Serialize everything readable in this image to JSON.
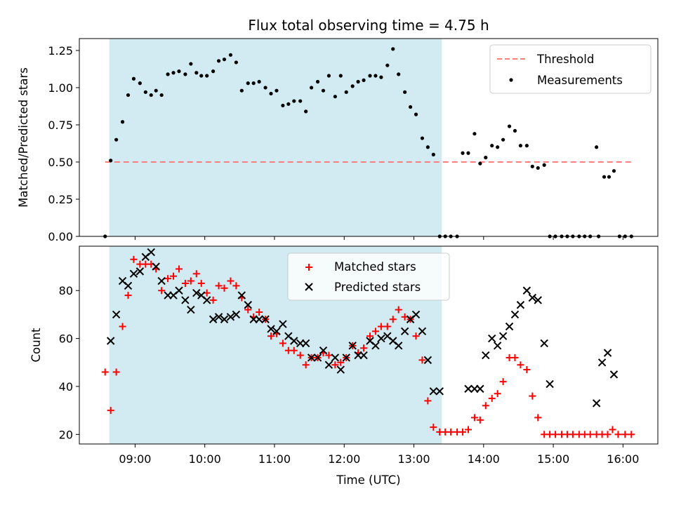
{
  "chart_data": {
    "title": "Flux total observing time = 4.75 h",
    "xlabel": "Time (UTC)",
    "xlim_hours": [
      8.2,
      16.5
    ],
    "xticks": [
      {
        "value": 9,
        "label": "09:00"
      },
      {
        "value": 10,
        "label": "10:00"
      },
      {
        "value": 11,
        "label": "11:00"
      },
      {
        "value": 12,
        "label": "12:00"
      },
      {
        "value": 13,
        "label": "13:00"
      },
      {
        "value": 14,
        "label": "14:00"
      },
      {
        "value": 15,
        "label": "15:00"
      },
      {
        "value": 16,
        "label": "16:00"
      }
    ],
    "shaded_span": {
      "x0": 8.63,
      "x1": 13.4,
      "color": "#add8e6"
    },
    "panels": [
      {
        "type": "scatter",
        "ylabel": "Matched/Predicted stars",
        "ylim": [
          0,
          1.33
        ],
        "yticks": [
          {
            "value": 0.0,
            "label": "0.00"
          },
          {
            "value": 0.25,
            "label": "0.25"
          },
          {
            "value": 0.5,
            "label": "0.50"
          },
          {
            "value": 0.75,
            "label": "0.75"
          },
          {
            "value": 1.0,
            "label": "1.00"
          },
          {
            "value": 1.25,
            "label": "1.25"
          }
        ],
        "threshold": {
          "name": "Threshold",
          "value": 0.5,
          "x0": 8.57,
          "x1": 16.13,
          "color": "#ff7f7f"
        },
        "legend": {
          "position": "upper right",
          "entries": [
            "Threshold",
            "Measurements"
          ]
        },
        "series": [
          {
            "name": "Measurements",
            "color": "#000000",
            "x": [
              8.57,
              8.65,
              8.73,
              8.82,
              8.9,
              8.98,
              9.07,
              9.15,
              9.23,
              9.3,
              9.38,
              9.47,
              9.55,
              9.63,
              9.72,
              9.8,
              9.88,
              9.95,
              10.03,
              10.12,
              10.2,
              10.28,
              10.37,
              10.45,
              10.53,
              10.62,
              10.7,
              10.78,
              10.87,
              10.95,
              11.03,
              11.12,
              11.2,
              11.28,
              11.37,
              11.45,
              11.53,
              11.62,
              11.7,
              11.78,
              11.87,
              11.95,
              12.03,
              12.12,
              12.2,
              12.28,
              12.37,
              12.45,
              12.53,
              12.62,
              12.7,
              12.78,
              12.87,
              12.95,
              13.03,
              13.12,
              13.2,
              13.28,
              13.37,
              13.45,
              13.53,
              13.62,
              13.7,
              13.78,
              13.87,
              13.95,
              14.03,
              14.12,
              14.2,
              14.28,
              14.37,
              14.45,
              14.53,
              14.62,
              14.7,
              14.78,
              14.87,
              14.95,
              15.03,
              15.12,
              15.2,
              15.28,
              15.37,
              15.45,
              15.53,
              15.62,
              15.65,
              15.73,
              15.8,
              15.87,
              15.95,
              16.03,
              16.12
            ],
            "y": [
              0.0,
              0.51,
              0.65,
              0.77,
              0.95,
              1.06,
              1.03,
              0.97,
              0.95,
              0.98,
              0.95,
              1.09,
              1.1,
              1.11,
              1.09,
              1.16,
              1.1,
              1.08,
              1.08,
              1.11,
              1.18,
              1.19,
              1.22,
              1.17,
              0.98,
              1.03,
              1.03,
              1.04,
              1.0,
              0.96,
              0.98,
              0.88,
              0.89,
              0.91,
              0.91,
              0.84,
              1.0,
              1.04,
              0.98,
              1.08,
              0.94,
              1.08,
              0.97,
              1.01,
              1.04,
              1.05,
              1.08,
              1.08,
              1.07,
              1.15,
              1.26,
              1.09,
              0.97,
              0.87,
              0.82,
              0.66,
              0.6,
              0.55,
              0.0,
              0.0,
              0.0,
              0.0,
              0.56,
              0.56,
              0.69,
              0.49,
              0.53,
              0.61,
              0.6,
              0.65,
              0.74,
              0.71,
              0.61,
              0.61,
              0.47,
              0.46,
              0.48,
              0.0,
              0.0,
              0.0,
              0.0,
              0.0,
              0.0,
              0.0,
              0.0,
              0.6,
              0.0,
              0.4,
              0.4,
              0.44,
              0.0,
              0.0,
              0.0
            ]
          }
        ]
      },
      {
        "type": "scatter",
        "ylabel": "Count",
        "ylim": [
          16,
          98.5
        ],
        "yticks": [
          {
            "value": 20,
            "label": "20"
          },
          {
            "value": 40,
            "label": "40"
          },
          {
            "value": 60,
            "label": "60"
          },
          {
            "value": 80,
            "label": "80"
          }
        ],
        "legend": {
          "position": "upper center",
          "entries": [
            "Matched stars",
            "Predicted stars"
          ]
        },
        "series": [
          {
            "name": "Matched stars",
            "marker": "+",
            "color": "#ff0000",
            "x": [
              8.57,
              8.65,
              8.73,
              8.82,
              8.9,
              8.98,
              9.07,
              9.15,
              9.23,
              9.3,
              9.38,
              9.47,
              9.55,
              9.63,
              9.72,
              9.8,
              9.88,
              9.95,
              10.03,
              10.12,
              10.2,
              10.28,
              10.37,
              10.45,
              10.53,
              10.62,
              10.7,
              10.78,
              10.87,
              10.95,
              11.03,
              11.12,
              11.2,
              11.28,
              11.37,
              11.45,
              11.53,
              11.62,
              11.7,
              11.78,
              11.87,
              11.95,
              12.03,
              12.12,
              12.2,
              12.28,
              12.37,
              12.45,
              12.53,
              12.62,
              12.7,
              12.78,
              12.87,
              12.95,
              13.03,
              13.12,
              13.2,
              13.28,
              13.37,
              13.45,
              13.53,
              13.62,
              13.7,
              13.78,
              13.87,
              13.95,
              14.03,
              14.12,
              14.2,
              14.28,
              14.37,
              14.45,
              14.53,
              14.62,
              14.7,
              14.78,
              14.87,
              14.95,
              15.03,
              15.12,
              15.2,
              15.28,
              15.37,
              15.45,
              15.53,
              15.62,
              15.7,
              15.78,
              15.85,
              15.93,
              16.03,
              16.12
            ],
            "y": [
              46,
              30,
              46,
              65,
              78,
              93,
              91,
              91,
              91,
              89,
              80,
              85,
              86,
              89,
              83,
              84,
              87,
              83,
              79,
              76,
              82,
              81,
              84,
              82,
              77,
              72,
              69,
              71,
              68,
              61,
              62,
              58,
              55,
              55,
              53,
              49,
              52,
              52,
              54,
              53,
              49,
              50,
              52,
              57,
              54,
              56,
              61,
              63,
              65,
              65,
              68,
              72,
              69,
              68,
              61,
              51,
              34,
              23,
              21,
              21,
              21,
              21,
              21,
              22,
              27,
              26,
              32,
              35,
              37,
              42,
              52,
              52,
              49,
              47,
              36,
              27,
              20,
              20,
              20,
              20,
              20,
              20,
              20,
              20,
              20,
              20,
              20,
              20,
              22,
              20,
              20,
              20
            ]
          },
          {
            "name": "Predicted stars",
            "marker": "x",
            "color": "#000000",
            "x": [
              8.65,
              8.73,
              8.82,
              8.9,
              8.98,
              9.07,
              9.15,
              9.23,
              9.3,
              9.38,
              9.47,
              9.55,
              9.63,
              9.72,
              9.8,
              9.88,
              9.95,
              10.03,
              10.12,
              10.2,
              10.28,
              10.37,
              10.45,
              10.53,
              10.62,
              10.7,
              10.78,
              10.87,
              10.95,
              11.03,
              11.12,
              11.2,
              11.28,
              11.37,
              11.45,
              11.53,
              11.62,
              11.7,
              11.78,
              11.87,
              11.95,
              12.03,
              12.12,
              12.2,
              12.28,
              12.37,
              12.45,
              12.53,
              12.62,
              12.7,
              12.78,
              12.87,
              12.95,
              13.03,
              13.12,
              13.2,
              13.28,
              13.37,
              13.78,
              13.87,
              13.95,
              14.03,
              14.12,
              14.2,
              14.28,
              14.37,
              14.45,
              14.53,
              14.62,
              14.7,
              14.78,
              14.87,
              14.95,
              15.62,
              15.7,
              15.78,
              15.87
            ],
            "y": [
              59,
              70,
              84,
              82,
              87,
              88,
              94,
              96,
              90,
              84,
              78,
              78,
              80,
              76,
              72,
              79,
              78,
              76,
              68,
              69,
              68,
              69,
              70,
              78,
              74,
              68,
              68,
              68,
              64,
              63,
              66,
              61,
              59,
              58,
              58,
              52,
              52,
              55,
              49,
              52,
              47,
              52,
              57,
              53,
              53,
              59,
              57,
              60,
              61,
              59,
              57,
              63,
              68,
              70,
              63,
              51,
              38,
              38,
              39,
              39,
              39,
              53,
              60,
              57,
              61,
              65,
              70,
              74,
              80,
              77,
              76,
              58,
              41,
              33,
              50,
              54,
              45
            ]
          }
        ]
      }
    ]
  }
}
